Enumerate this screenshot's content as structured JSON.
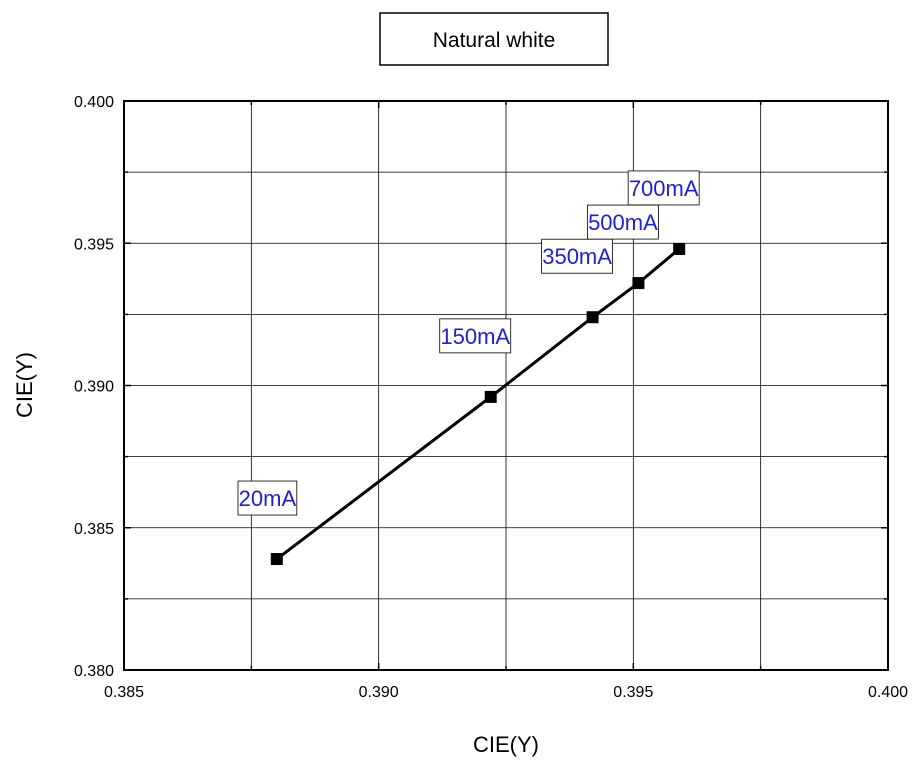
{
  "chart_data": {
    "type": "line",
    "title": "",
    "legend": {
      "entries": [
        "Natural white"
      ],
      "position": "top-center"
    },
    "xlabel": "CIE(Y)",
    "ylabel": "CIE(Y)",
    "xlim": [
      0.385,
      0.4
    ],
    "ylim": [
      0.38,
      0.4
    ],
    "x_ticks": [
      "0.385",
      "0.390",
      "0.395",
      "0.400"
    ],
    "y_ticks": [
      "0.380",
      "0.385",
      "0.390",
      "0.395",
      "0.400"
    ],
    "grid": true,
    "series": [
      {
        "name": "Natural white",
        "marker": "square",
        "color": "#000000",
        "points": [
          {
            "x": 0.388,
            "y": 0.3839,
            "label": "20mA"
          },
          {
            "x": 0.3922,
            "y": 0.3896,
            "label": "150mA"
          },
          {
            "x": 0.3942,
            "y": 0.3924,
            "label": "350mA"
          },
          {
            "x": 0.3951,
            "y": 0.3936,
            "label": "500mA"
          },
          {
            "x": 0.3959,
            "y": 0.3948,
            "label": "700mA"
          }
        ]
      }
    ],
    "label_color": "#1f1fd6"
  }
}
